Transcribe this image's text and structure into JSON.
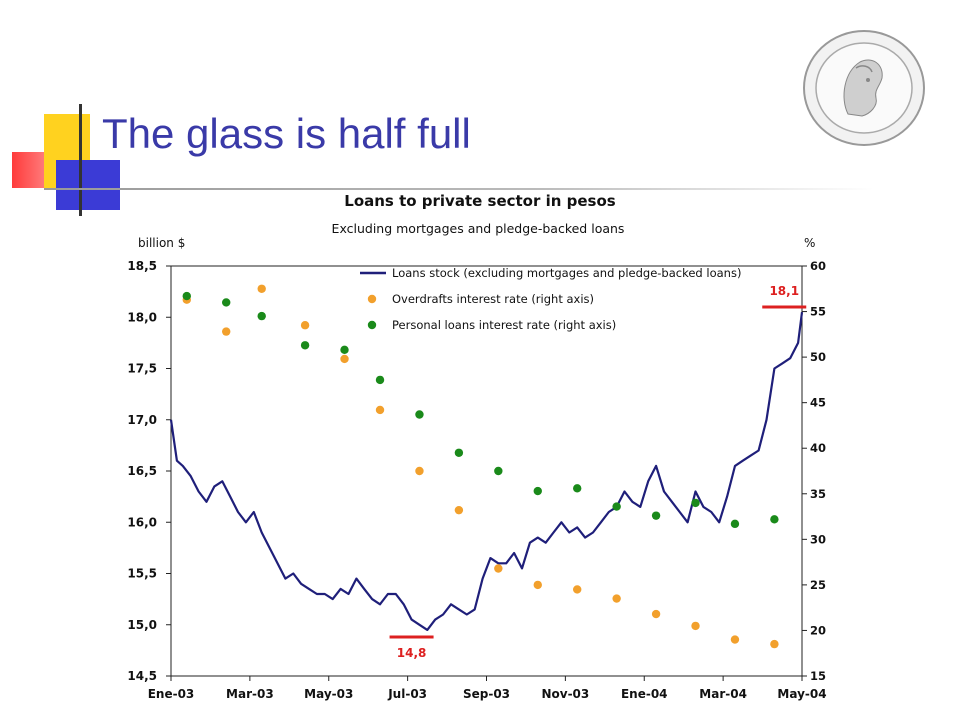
{
  "slide": {
    "title": "The glass is half full"
  },
  "chart_data": {
    "type": "line",
    "title": "Loans to private sector in pesos",
    "subtitle": "Excluding mortgages and pledge-backed loans",
    "left_axis": {
      "unit": "billion $",
      "min": 14.5,
      "max": 18.5,
      "ticks": [
        {
          "v": 18.5,
          "label": "18,5"
        },
        {
          "v": 18.0,
          "label": "18,0"
        },
        {
          "v": 17.5,
          "label": "17,5"
        },
        {
          "v": 17.0,
          "label": "17,0"
        },
        {
          "v": 16.5,
          "label": "16,5"
        },
        {
          "v": 16.0,
          "label": "16,0"
        },
        {
          "v": 15.5,
          "label": "15,5"
        },
        {
          "v": 15.0,
          "label": "15,0"
        },
        {
          "v": 14.5,
          "label": "14,5"
        }
      ]
    },
    "right_axis": {
      "unit": "%",
      "min": 15,
      "max": 60,
      "ticks": [
        {
          "v": 60,
          "label": "60"
        },
        {
          "v": 55,
          "label": "55"
        },
        {
          "v": 50,
          "label": "50"
        },
        {
          "v": 45,
          "label": "45"
        },
        {
          "v": 40,
          "label": "40"
        },
        {
          "v": 35,
          "label": "35"
        },
        {
          "v": 30,
          "label": "30"
        },
        {
          "v": 25,
          "label": "25"
        },
        {
          "v": 20,
          "label": "20"
        },
        {
          "v": 15,
          "label": "15"
        }
      ]
    },
    "x_axis": {
      "min": 0,
      "max": 16,
      "ticks": [
        {
          "v": 0,
          "label": "Ene-03"
        },
        {
          "v": 2,
          "label": "Mar-03"
        },
        {
          "v": 4,
          "label": "May-03"
        },
        {
          "v": 6,
          "label": "Jul-03"
        },
        {
          "v": 8,
          "label": "Sep-03"
        },
        {
          "v": 10,
          "label": "Nov-03"
        },
        {
          "v": 12,
          "label": "Ene-04"
        },
        {
          "v": 14,
          "label": "Mar-04"
        },
        {
          "v": 16,
          "label": "May-04"
        }
      ]
    },
    "legend_position": "top-right",
    "series": [
      {
        "name": "Loans stock (excluding mortgages and pledge-backed loans)",
        "kind": "line",
        "axis": "left",
        "color": "#1f1f7a",
        "x": [
          0,
          0.15,
          0.3,
          0.5,
          0.7,
          0.9,
          1.1,
          1.3,
          1.5,
          1.7,
          1.9,
          2.1,
          2.3,
          2.5,
          2.7,
          2.9,
          3.1,
          3.3,
          3.5,
          3.7,
          3.9,
          4.1,
          4.3,
          4.5,
          4.7,
          4.9,
          5.1,
          5.3,
          5.5,
          5.7,
          5.9,
          6.1,
          6.3,
          6.5,
          6.7,
          6.9,
          7.1,
          7.3,
          7.5,
          7.7,
          7.9,
          8.1,
          8.3,
          8.5,
          8.7,
          8.9,
          9.1,
          9.3,
          9.5,
          9.7,
          9.9,
          10.1,
          10.3,
          10.5,
          10.7,
          10.9,
          11.1,
          11.3,
          11.5,
          11.7,
          11.9,
          12.1,
          12.3,
          12.5,
          12.7,
          12.9,
          13.1,
          13.3,
          13.5,
          13.7,
          13.9,
          14.1,
          14.3,
          14.5,
          14.7,
          14.9,
          15.1,
          15.3,
          15.5,
          15.7,
          15.9,
          16.0
        ],
        "y": [
          17.0,
          16.6,
          16.55,
          16.45,
          16.3,
          16.2,
          16.35,
          16.4,
          16.25,
          16.1,
          16.0,
          16.1,
          15.9,
          15.75,
          15.6,
          15.45,
          15.5,
          15.4,
          15.35,
          15.3,
          15.3,
          15.25,
          15.35,
          15.3,
          15.45,
          15.35,
          15.25,
          15.2,
          15.3,
          15.3,
          15.2,
          15.05,
          15.0,
          14.95,
          15.05,
          15.1,
          15.2,
          15.15,
          15.1,
          15.15,
          15.45,
          15.65,
          15.6,
          15.6,
          15.7,
          15.55,
          15.8,
          15.85,
          15.8,
          15.9,
          16.0,
          15.9,
          15.95,
          15.85,
          15.9,
          16.0,
          16.1,
          16.15,
          16.3,
          16.2,
          16.15,
          16.4,
          16.55,
          16.3,
          16.2,
          16.1,
          16.0,
          16.3,
          16.15,
          16.1,
          16.0,
          16.25,
          16.55,
          16.6,
          16.65,
          16.7,
          17.0,
          17.5,
          17.55,
          17.6,
          17.75,
          18.05
        ]
      },
      {
        "name": "Overdrafts interest rate (right axis)",
        "kind": "scatter",
        "axis": "right",
        "color": "#f2a02c",
        "x": [
          0.4,
          1.4,
          2.3,
          3.4,
          4.4,
          5.3,
          6.3,
          7.3,
          8.3,
          9.3,
          10.3,
          11.3,
          12.3,
          13.3,
          14.3,
          15.3
        ],
        "y": [
          56.3,
          52.8,
          57.5,
          53.5,
          49.8,
          44.2,
          37.5,
          33.2,
          26.8,
          25.0,
          24.5,
          23.5,
          21.8,
          20.5,
          19.0,
          18.5
        ]
      },
      {
        "name": "Personal loans interest rate (right axis)",
        "kind": "scatter",
        "axis": "right",
        "color": "#1a8a1a",
        "x": [
          0.4,
          1.4,
          2.3,
          3.4,
          4.4,
          5.3,
          6.3,
          7.3,
          8.3,
          9.3,
          10.3,
          11.3,
          12.3,
          13.3,
          14.3,
          15.3
        ],
        "y": [
          56.7,
          56.0,
          54.5,
          51.3,
          50.8,
          47.5,
          43.7,
          39.5,
          37.5,
          35.3,
          35.6,
          33.6,
          32.6,
          34.0,
          31.7,
          32.2
        ]
      }
    ],
    "annotations": [
      {
        "label": "18,1",
        "x": 15.55,
        "y": 18.1,
        "axis": "left",
        "color": "#dd2020"
      },
      {
        "label": "14,8",
        "x": 6.1,
        "y": 14.88,
        "axis": "left",
        "color": "#dd2020"
      }
    ]
  }
}
